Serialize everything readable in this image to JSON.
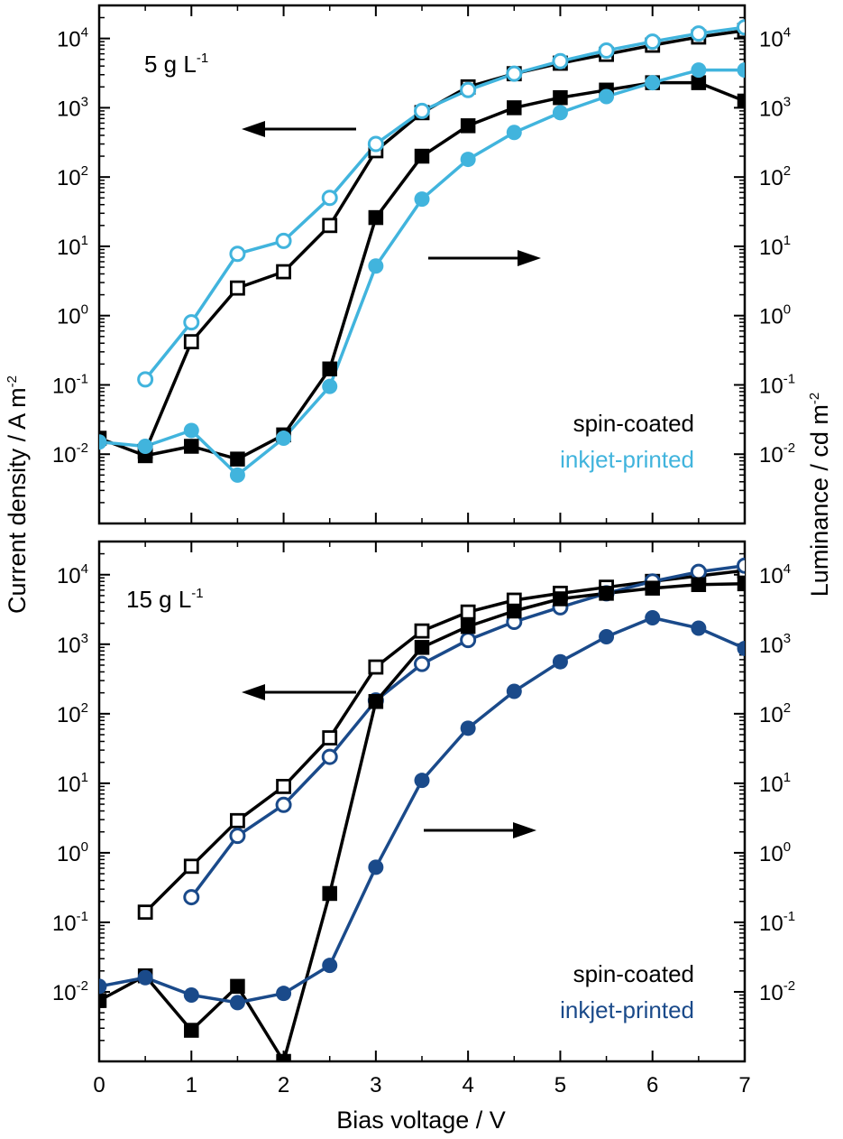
{
  "chart_data": [
    {
      "type": "line",
      "annotation": "5 g L",
      "annotation_exp": "-1",
      "x_scale": "linear",
      "y_scale": "log",
      "xlim": [
        0,
        7
      ],
      "ylim": [
        0.001,
        30000
      ],
      "xlabel": "Bias voltage / V",
      "ylabel_left": "Current density / A m",
      "ylabel_left_exp": "-2",
      "ylabel_right": "Luminance / cd m",
      "ylabel_right_exp": "-2",
      "x_ticks": [
        "0",
        "1",
        "2",
        "3",
        "4",
        "5",
        "6",
        "7"
      ],
      "y_ticks": [
        {
          "base": "10",
          "exp": "-2"
        },
        {
          "base": "10",
          "exp": "-1"
        },
        {
          "base": "10",
          "exp": "0"
        },
        {
          "base": "10",
          "exp": "1"
        },
        {
          "base": "10",
          "exp": "2"
        },
        {
          "base": "10",
          "exp": "3"
        },
        {
          "base": "10",
          "exp": "4"
        }
      ],
      "legend": [
        {
          "label": "spin-coated",
          "color": "#000000"
        },
        {
          "label": "inkjet-printed",
          "color": "#41b4dd"
        }
      ],
      "series": [
        {
          "group": "spin-coated",
          "quantity": "current",
          "marker": "open-square",
          "color": "#000000",
          "x": [
            0.5,
            1,
            1.5,
            2,
            2.5,
            3,
            3.5,
            4,
            4.5,
            5,
            5.5,
            6,
            6.5,
            7
          ],
          "y": [
            0.011,
            0.42,
            2.5,
            4.3,
            20,
            240,
            850,
            2000,
            3100,
            4400,
            5900,
            8000,
            10500,
            13000
          ]
        },
        {
          "group": "inkjet-printed",
          "quantity": "current",
          "marker": "open-circle",
          "color": "#41b4dd",
          "x": [
            0.5,
            1,
            1.5,
            2,
            2.5,
            3,
            3.5,
            4,
            4.5,
            5,
            5.5,
            6,
            6.5,
            7
          ],
          "y": [
            0.12,
            0.8,
            7.8,
            12,
            50,
            300,
            900,
            1800,
            3100,
            4700,
            6700,
            9000,
            11800,
            14500
          ]
        },
        {
          "group": "spin-coated",
          "quantity": "luminance",
          "marker": "filled-square",
          "color": "#000000",
          "x": [
            0,
            0.5,
            1,
            1.5,
            2,
            2.5,
            3,
            3.5,
            4,
            4.5,
            5,
            5.5,
            6,
            6.5,
            7
          ],
          "y": [
            0.017,
            0.0095,
            0.013,
            0.0085,
            0.019,
            0.17,
            26,
            200,
            550,
            1000,
            1400,
            1800,
            2300,
            2300,
            1250
          ]
        },
        {
          "group": "inkjet-printed",
          "quantity": "luminance",
          "marker": "filled-circle",
          "color": "#41b4dd",
          "x": [
            0,
            0.5,
            1,
            1.5,
            2,
            2.5,
            3,
            3.5,
            4,
            4.5,
            5,
            5.5,
            6,
            6.5,
            7
          ],
          "y": [
            0.015,
            0.013,
            0.022,
            0.005,
            0.017,
            0.095,
            5.2,
            48,
            180,
            440,
            850,
            1450,
            2300,
            3500,
            3500
          ]
        }
      ]
    },
    {
      "type": "line",
      "annotation": "15 g L",
      "annotation_exp": "-1",
      "x_scale": "linear",
      "y_scale": "log",
      "xlim": [
        0,
        7
      ],
      "ylim": [
        0.001,
        30000
      ],
      "xlabel": "Bias voltage / V",
      "x_ticks": [
        "0",
        "1",
        "2",
        "3",
        "4",
        "5",
        "6",
        "7"
      ],
      "y_ticks": [
        {
          "base": "10",
          "exp": "-2"
        },
        {
          "base": "10",
          "exp": "-1"
        },
        {
          "base": "10",
          "exp": "0"
        },
        {
          "base": "10",
          "exp": "1"
        },
        {
          "base": "10",
          "exp": "2"
        },
        {
          "base": "10",
          "exp": "3"
        },
        {
          "base": "10",
          "exp": "4"
        }
      ],
      "legend": [
        {
          "label": "spin-coated",
          "color": "#000000"
        },
        {
          "label": "inkjet-printed",
          "color": "#1a4a8a"
        }
      ],
      "series": [
        {
          "group": "spin-coated",
          "quantity": "current",
          "marker": "open-square",
          "color": "#000000",
          "x": [
            0.5,
            1,
            1.5,
            2,
            2.5,
            3,
            3.5,
            4,
            4.5,
            5,
            5.5,
            6,
            6.5,
            7
          ],
          "y": [
            0.14,
            0.64,
            2.9,
            9,
            45,
            470,
            1550,
            2900,
            4300,
            5400,
            6600,
            8000,
            9600,
            11500
          ]
        },
        {
          "group": "inkjet-printed",
          "quantity": "current",
          "marker": "open-circle",
          "color": "#1a4a8a",
          "x": [
            1,
            1.5,
            2,
            2.5,
            3,
            3.5,
            4,
            4.5,
            5,
            5.5,
            6,
            6.5,
            7
          ],
          "y": [
            0.23,
            1.75,
            4.9,
            24,
            155,
            520,
            1150,
            2100,
            3400,
            5400,
            8000,
            11000,
            13500
          ]
        },
        {
          "group": "spin-coated",
          "quantity": "luminance",
          "marker": "filled-square",
          "color": "#000000",
          "x": [
            0,
            0.5,
            1,
            1.5,
            2,
            2.5,
            3,
            3.5,
            4,
            4.5,
            5,
            5.5,
            6,
            6.5,
            7
          ],
          "y": [
            0.0075,
            0.017,
            0.0028,
            0.012,
            0.001,
            0.26,
            150,
            900,
            1800,
            3000,
            4500,
            5400,
            6400,
            7200,
            7400
          ]
        },
        {
          "group": "inkjet-printed",
          "quantity": "luminance",
          "marker": "filled-circle",
          "color": "#1a4a8a",
          "x": [
            0,
            0.5,
            1,
            1.5,
            2,
            2.5,
            3,
            3.5,
            4,
            4.5,
            5,
            5.5,
            6,
            6.5,
            7
          ],
          "y": [
            0.012,
            0.016,
            0.009,
            0.007,
            0.0095,
            0.024,
            0.62,
            11,
            62,
            210,
            560,
            1280,
            2400,
            1700,
            870
          ]
        }
      ]
    }
  ]
}
